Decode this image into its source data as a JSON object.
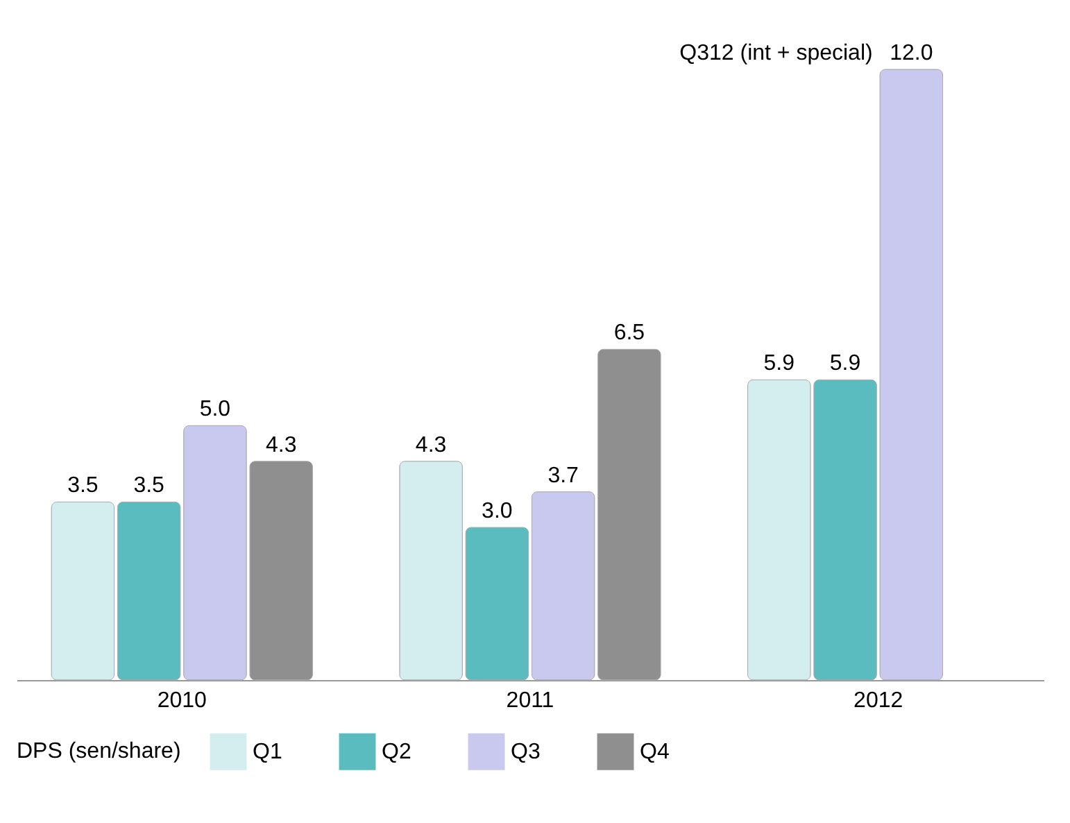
{
  "chart_data": {
    "type": "bar",
    "categories": [
      "2010",
      "2011",
      "2012"
    ],
    "legend_title": "DPS (sen/share)",
    "legend": "bottom",
    "series": [
      {
        "name": "Q1",
        "color": "#d4eef0",
        "values": [
          3.5,
          4.3,
          5.9
        ],
        "value_labels": [
          "3.5",
          "4.3",
          "5.9"
        ]
      },
      {
        "name": "Q2",
        "color": "#5bbcbf",
        "values": [
          3.5,
          3.0,
          5.9
        ],
        "value_labels": [
          "3.5",
          "3.0",
          "5.9"
        ]
      },
      {
        "name": "Q3",
        "color": "#c9c9f0",
        "values": [
          5.0,
          3.7,
          12.0
        ],
        "value_labels": [
          "5.0",
          "3.7",
          "12.0"
        ]
      },
      {
        "name": "Q4",
        "color": "#8f8f8f",
        "values": [
          4.3,
          6.5,
          null
        ],
        "value_labels": [
          "4.3",
          "6.5",
          null
        ]
      }
    ],
    "annotations": [
      {
        "text": "Q312 (int + special)",
        "x": "2012",
        "y": 12.0
      }
    ]
  }
}
